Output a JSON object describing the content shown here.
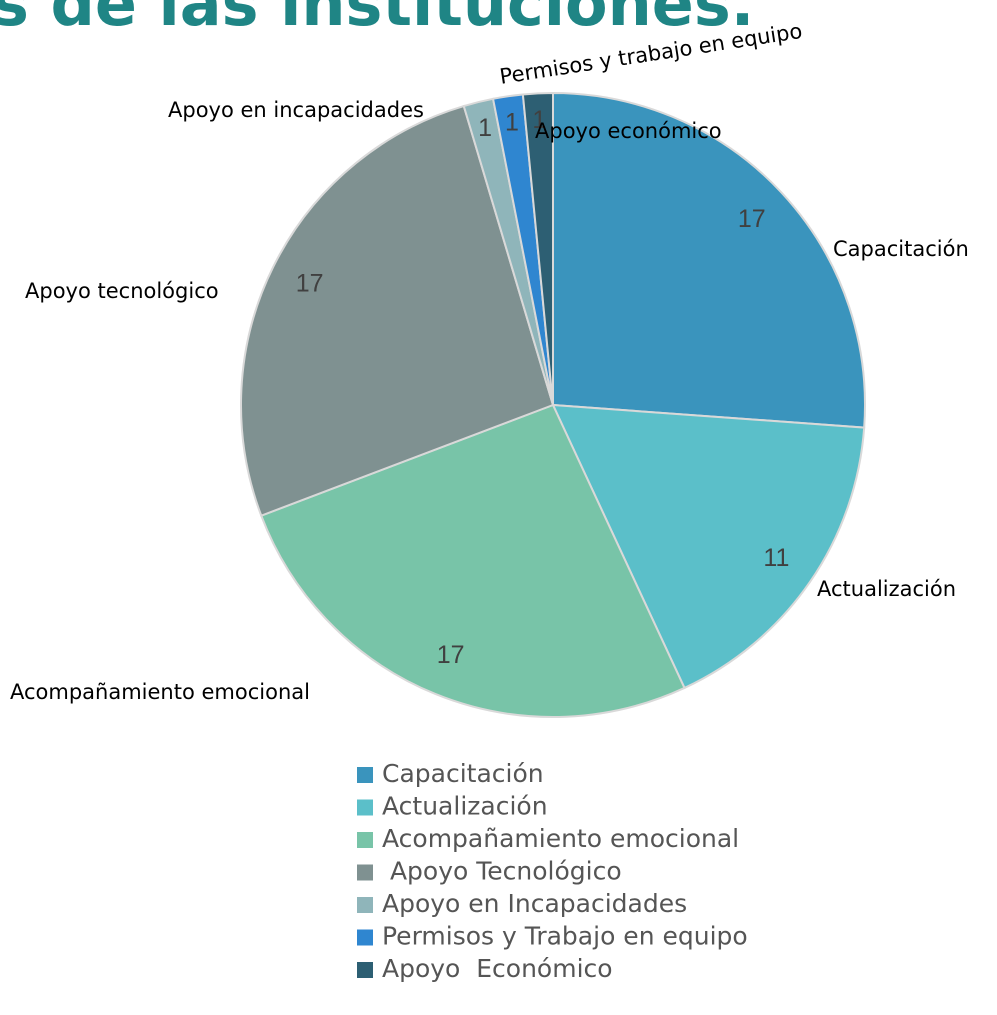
{
  "chart_data": {
    "type": "pie",
    "title": "s de las instituciones.",
    "categories": [
      "Capacitación",
      "Actualización",
      "Acompañamiento emocional",
      " Apoyo Tecnológico",
      "Apoyo en Incapacidades",
      "Permisos y Trabajo en equipo",
      "Apoyo  Económico"
    ],
    "category_labels": [
      "Capacitación",
      "Actualización",
      "Acompañamiento emocional",
      "Apoyo tecnológico",
      "Apoyo en incapacidades",
      "Permisos y trabajo en equipo",
      "Apoyo económico"
    ],
    "values": [
      17,
      11,
      17,
      17,
      1,
      1,
      1
    ],
    "colors": [
      "#3a94bd",
      "#5bbfc9",
      "#78c4a8",
      "#7f9191",
      "#8fb5ba",
      "#2f86d0",
      "#2d5f73"
    ],
    "legend": "bottom"
  }
}
